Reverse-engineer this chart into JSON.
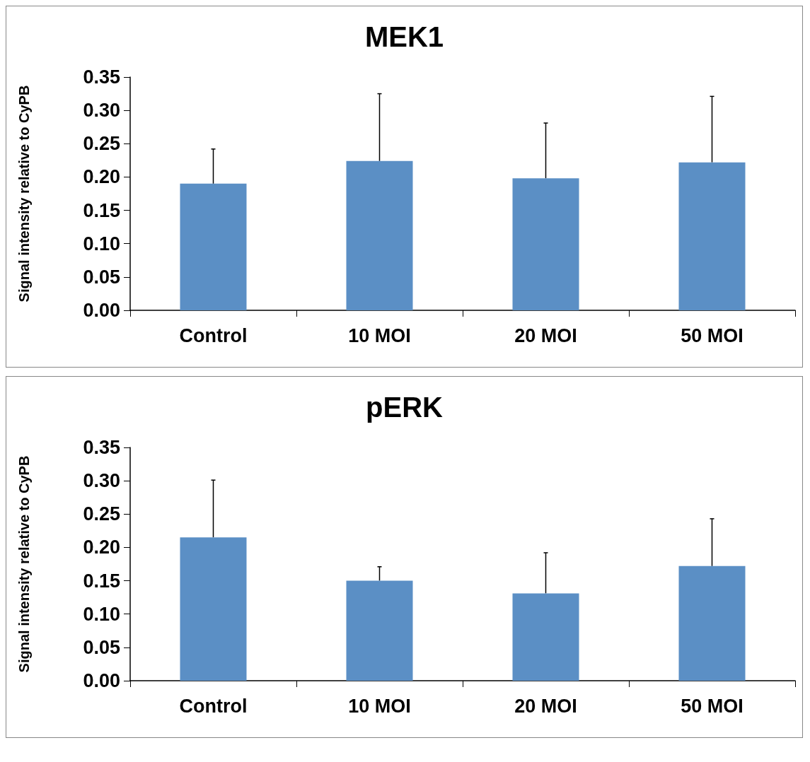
{
  "chart_data": [
    {
      "type": "bar",
      "title": "MEK1",
      "ylabel": "Signal intensity relative to CyPB",
      "categories": [
        "Control",
        "10 MOI",
        "20 MOI",
        "50 MOI"
      ],
      "series": [
        {
          "color": "#5b8fc5",
          "values": [
            0.19,
            0.224,
            0.198,
            0.222
          ],
          "errors": [
            0.052,
            0.101,
            0.083,
            0.099
          ]
        }
      ],
      "ylim": [
        0,
        0.35
      ],
      "yticks": [
        {
          "value": 0,
          "label": "0.00"
        },
        {
          "value": 0.05,
          "label": "0.05"
        },
        {
          "value": 0.1,
          "label": "0.10"
        },
        {
          "value": 0.15,
          "label": "0.15"
        },
        {
          "value": 0.2,
          "label": "0.20"
        },
        {
          "value": 0.25,
          "label": "0.25"
        },
        {
          "value": 0.3,
          "label": "0.30"
        },
        {
          "value": 0.35,
          "label": "0.35"
        }
      ],
      "grid": false
    },
    {
      "type": "bar",
      "title": "pERK",
      "ylabel": "Signal intensity relative to CyPB",
      "categories": [
        "Control",
        "10 MOI",
        "20 MOI",
        "50 MOI"
      ],
      "series": [
        {
          "color": "#5b8fc5",
          "values": [
            0.215,
            0.15,
            0.131,
            0.172
          ],
          "errors": [
            0.086,
            0.021,
            0.061,
            0.071
          ]
        }
      ],
      "ylim": [
        0,
        0.35
      ],
      "yticks": [
        {
          "value": 0,
          "label": "0.00"
        },
        {
          "value": 0.05,
          "label": "0.05"
        },
        {
          "value": 0.1,
          "label": "0.10"
        },
        {
          "value": 0.15,
          "label": "0.15"
        },
        {
          "value": 0.2,
          "label": "0.20"
        },
        {
          "value": 0.25,
          "label": "0.25"
        },
        {
          "value": 0.3,
          "label": "0.30"
        },
        {
          "value": 0.35,
          "label": "0.35"
        }
      ],
      "grid": false
    }
  ]
}
